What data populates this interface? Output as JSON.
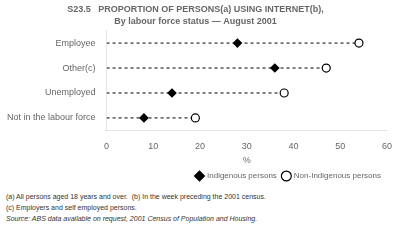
{
  "chart_data": {
    "type": "dot",
    "orientation": "horizontal",
    "title": "S23.5   PROPORTION OF PERSONS(a) USING INTERNET(b),",
    "subtitle": "By labour force status — August 2001",
    "categories": [
      "Employee",
      "Other(c)",
      "Unemployed",
      "Not in the labour force"
    ],
    "series": [
      {
        "name": "Indigenous persons",
        "color": "black",
        "marker": "diamond",
        "values": [
          28,
          36,
          14,
          8
        ]
      },
      {
        "name": "Non-Indigenous persons",
        "color": "black",
        "marker": "open_circle",
        "line_style": "dashed",
        "values": [
          54,
          47,
          38,
          19
        ]
      }
    ],
    "xlabel": "%",
    "xlim": [
      0,
      60
    ],
    "xticks": [
      0,
      10,
      20,
      30,
      40,
      50,
      60
    ],
    "grid": false,
    "legend": "lower right",
    "annotations": [
      "(a) All persons aged 18 years and over.  (b) In the week preceding the 2001 census.",
      "(c) Employers and self employed persons.",
      "Source: ABS data available on request, 2001 Census of Population and Housing."
    ]
  }
}
